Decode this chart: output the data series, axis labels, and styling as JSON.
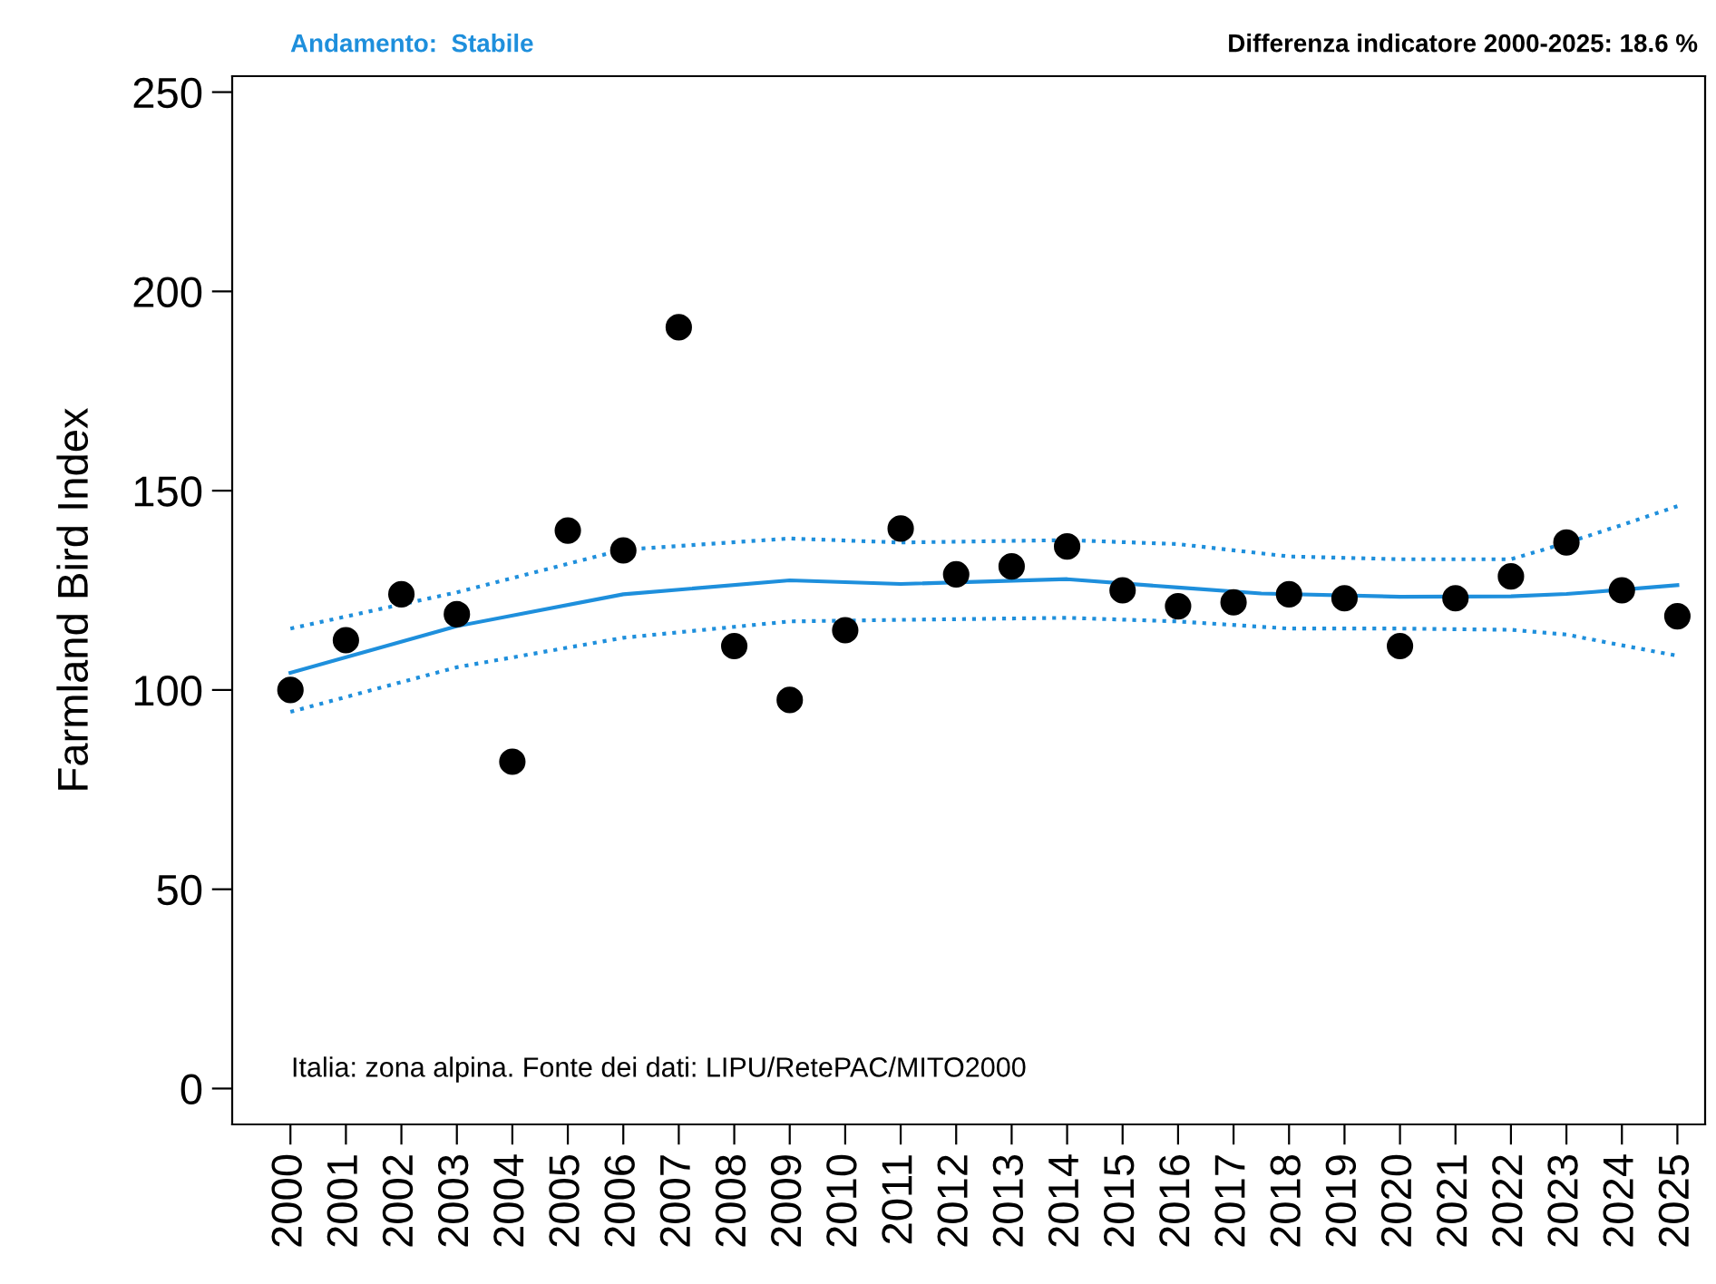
{
  "chart_data": {
    "type": "scatter",
    "title": "Andamento:  Stabile",
    "subtitle": "Differenza indicatore 2000-2025: 18.6 %",
    "ylabel": "Farmland Bird Index",
    "annotations": [
      "Italia: zona alpina. Fonte dei dati: LIPU/RetePAC/MITO2000"
    ],
    "x": [
      2000,
      2001,
      2002,
      2003,
      2004,
      2005,
      2006,
      2007,
      2008,
      2009,
      2010,
      2011,
      2012,
      2013,
      2014,
      2015,
      2016,
      2017,
      2018,
      2019,
      2020,
      2021,
      2022,
      2023,
      2024,
      2025
    ],
    "series": [
      {
        "color": "#000000",
        "marker": "circle",
        "values": [
          100,
          112.5,
          124,
          119,
          82,
          140,
          135,
          191,
          111,
          97.5,
          115,
          140.5,
          129,
          131,
          136,
          125,
          121,
          122,
          124,
          123,
          111,
          123,
          128.5,
          137,
          125,
          118.5
        ]
      },
      {
        "type": "line",
        "color": "#1e8fdc",
        "line_style": "solid",
        "marker": "none",
        "x": [
          2000,
          2003,
          2006,
          2009,
          2011,
          2014,
          2016,
          2017.5,
          2020,
          2022,
          2023,
          2023.5,
          2025
        ],
        "values": [
          104.3,
          116,
          124,
          127.5,
          126.6,
          127.8,
          125.7,
          124.2,
          123.4,
          123.5,
          124.1,
          124.6,
          126.3
        ]
      },
      {
        "type": "line",
        "color": "#1e8fdc",
        "line_style": "dotted",
        "marker": "none",
        "x": [
          2000,
          2003,
          2006,
          2009,
          2011,
          2014,
          2016,
          2018,
          2020,
          2022,
          2023,
          2024,
          2025
        ],
        "values": [
          94.5,
          105.7,
          113.1,
          117.2,
          117.6,
          118.1,
          117.2,
          115.4,
          115.4,
          115.1,
          113.9,
          111.2,
          108.6
        ]
      },
      {
        "type": "line",
        "color": "#1e8fdc",
        "line_style": "dotted",
        "marker": "none",
        "x": [
          2000,
          2003,
          2006,
          2009,
          2011,
          2014,
          2016,
          2018,
          2020,
          2022,
          2023,
          2024,
          2025
        ],
        "values": [
          115.4,
          124.5,
          135.2,
          138,
          137,
          137.6,
          136.6,
          133.5,
          132.8,
          132.8,
          136.9,
          141.4,
          146.1
        ]
      }
    ],
    "xlim": [
      1998.95,
      2025.5
    ],
    "xticks": [
      2000,
      2001,
      2002,
      2003,
      2004,
      2005,
      2006,
      2007,
      2008,
      2009,
      2010,
      2011,
      2012,
      2013,
      2014,
      2015,
      2016,
      2017,
      2018,
      2019,
      2020,
      2021,
      2022,
      2023,
      2024,
      2025
    ],
    "ylim": [
      -9,
      254
    ],
    "yticks": [
      0,
      50,
      100,
      150,
      200,
      250
    ],
    "grid": false,
    "legend": false
  }
}
